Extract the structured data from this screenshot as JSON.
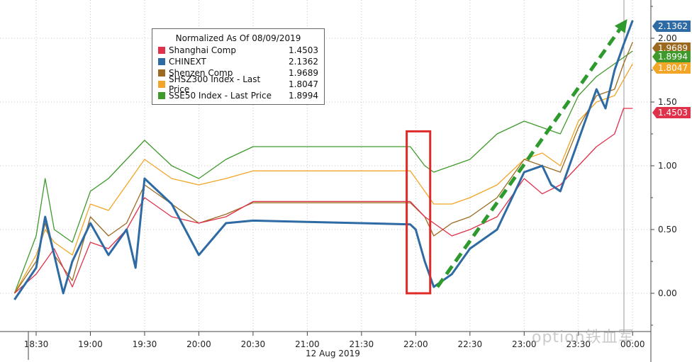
{
  "chart_data": {
    "type": "line",
    "title": "Normalized As Of 08/09/2019",
    "x_date_label": "12 Aug 2019",
    "x_ticks": [
      "18:30",
      "19:00",
      "19:30",
      "20:00",
      "20:30",
      "21:00",
      "21:30",
      "22:00",
      "22:30",
      "23:00",
      "23:30",
      "00:00"
    ],
    "y_ticks": [
      "0.00",
      "0.50",
      "1.00",
      "1.50",
      "2.00"
    ],
    "ylim": [
      -0.3,
      2.3
    ],
    "grid": true,
    "legend_position": "top-left",
    "series": [
      {
        "name": "Shanghai Comp",
        "color": "#e0314b",
        "last": "1.4503",
        "x": [
          "18:18",
          "18:30",
          "18:40",
          "18:50",
          "19:00",
          "19:10",
          "19:20",
          "19:30",
          "19:45",
          "20:00",
          "20:15",
          "20:30",
          "21:00",
          "21:30",
          "21:57",
          "22:05",
          "22:10",
          "22:20",
          "22:30",
          "22:45",
          "23:00",
          "23:10",
          "23:20",
          "23:30",
          "23:40",
          "23:50",
          "23:55",
          "00:00"
        ],
        "y": [
          0.0,
          0.15,
          0.35,
          0.05,
          0.4,
          0.35,
          0.5,
          0.75,
          0.6,
          0.55,
          0.6,
          0.72,
          0.72,
          0.72,
          0.72,
          0.6,
          0.55,
          0.45,
          0.5,
          0.6,
          0.9,
          0.78,
          0.85,
          1.0,
          1.15,
          1.25,
          1.45,
          1.45
        ]
      },
      {
        "name": "CHINEXT",
        "color": "#2e6aa3",
        "last": "2.1362",
        "x": [
          "18:18",
          "18:30",
          "18:35",
          "18:40",
          "18:45",
          "18:50",
          "19:00",
          "19:10",
          "19:20",
          "19:25",
          "19:30",
          "19:45",
          "20:00",
          "20:15",
          "20:30",
          "21:00",
          "21:30",
          "21:57",
          "22:00",
          "22:05",
          "22:10",
          "22:20",
          "22:30",
          "22:45",
          "23:00",
          "23:10",
          "23:15",
          "23:20",
          "23:30",
          "23:40",
          "23:45",
          "23:50",
          "23:55",
          "00:00"
        ],
        "y": [
          -0.05,
          0.2,
          0.6,
          0.3,
          0.0,
          0.25,
          0.55,
          0.3,
          0.5,
          0.2,
          0.9,
          0.7,
          0.3,
          0.55,
          0.57,
          0.56,
          0.55,
          0.54,
          0.5,
          0.25,
          0.05,
          0.15,
          0.35,
          0.5,
          0.95,
          1.0,
          0.85,
          0.8,
          1.2,
          1.6,
          1.45,
          1.75,
          1.95,
          2.14
        ]
      },
      {
        "name": "Shenzen Comp",
        "color": "#9b6a1f",
        "last": "1.9689",
        "x": [
          "18:18",
          "18:30",
          "18:35",
          "18:40",
          "18:50",
          "19:00",
          "19:10",
          "19:20",
          "19:30",
          "19:45",
          "20:00",
          "20:15",
          "20:30",
          "21:00",
          "21:30",
          "21:57",
          "22:05",
          "22:10",
          "22:20",
          "22:30",
          "22:45",
          "23:00",
          "23:10",
          "23:20",
          "23:30",
          "23:40",
          "23:50",
          "23:55",
          "00:00"
        ],
        "y": [
          0.0,
          0.25,
          0.55,
          0.3,
          0.1,
          0.6,
          0.45,
          0.55,
          0.85,
          0.7,
          0.55,
          0.62,
          0.71,
          0.71,
          0.71,
          0.71,
          0.6,
          0.45,
          0.55,
          0.6,
          0.75,
          1.05,
          1.0,
          0.95,
          1.3,
          1.55,
          1.6,
          1.8,
          1.97
        ]
      },
      {
        "name": "SHSZ300 Index - Last Price",
        "color": "#f2a527",
        "last": "1.8047",
        "x": [
          "18:18",
          "18:30",
          "18:35",
          "18:40",
          "18:50",
          "19:00",
          "19:10",
          "19:20",
          "19:30",
          "19:45",
          "20:00",
          "20:15",
          "20:30",
          "21:00",
          "21:30",
          "21:57",
          "22:05",
          "22:10",
          "22:20",
          "22:30",
          "22:45",
          "23:00",
          "23:10",
          "23:20",
          "23:30",
          "23:40",
          "23:50",
          "00:00"
        ],
        "y": [
          0.0,
          0.3,
          0.5,
          0.4,
          0.3,
          0.7,
          0.65,
          0.85,
          1.05,
          0.9,
          0.85,
          0.9,
          0.96,
          0.96,
          0.96,
          0.96,
          0.8,
          0.7,
          0.7,
          0.75,
          0.85,
          1.05,
          1.1,
          1.0,
          1.35,
          1.5,
          1.55,
          1.8
        ]
      },
      {
        "name": "SSE50 Index - Last Price",
        "color": "#3f9a2c",
        "last": "1.8994",
        "x": [
          "18:18",
          "18:30",
          "18:35",
          "18:40",
          "18:50",
          "19:00",
          "19:10",
          "19:20",
          "19:30",
          "19:45",
          "20:00",
          "20:15",
          "20:30",
          "21:00",
          "21:30",
          "21:57",
          "22:05",
          "22:10",
          "22:20",
          "22:30",
          "22:45",
          "23:00",
          "23:10",
          "23:20",
          "23:30",
          "23:40",
          "23:50",
          "00:00"
        ],
        "y": [
          0.0,
          0.45,
          0.9,
          0.5,
          0.4,
          0.8,
          0.9,
          1.05,
          1.2,
          1.0,
          0.9,
          1.05,
          1.15,
          1.15,
          1.15,
          1.15,
          1.0,
          0.95,
          1.0,
          1.05,
          1.25,
          1.35,
          1.3,
          1.25,
          1.55,
          1.7,
          1.8,
          1.9
        ]
      }
    ],
    "annotations": {
      "highlight_box": {
        "x_start": "21:55",
        "x_end": "22:08",
        "y_low": 0.0,
        "y_high": 1.27,
        "color": "#e02a2a"
      },
      "trend_arrow": {
        "x_start": "22:12",
        "y_start": 0.05,
        "x_end": "23:57",
        "y_end": 2.15,
        "color": "#2e9a2e"
      }
    }
  },
  "watermark": "option铁血军"
}
